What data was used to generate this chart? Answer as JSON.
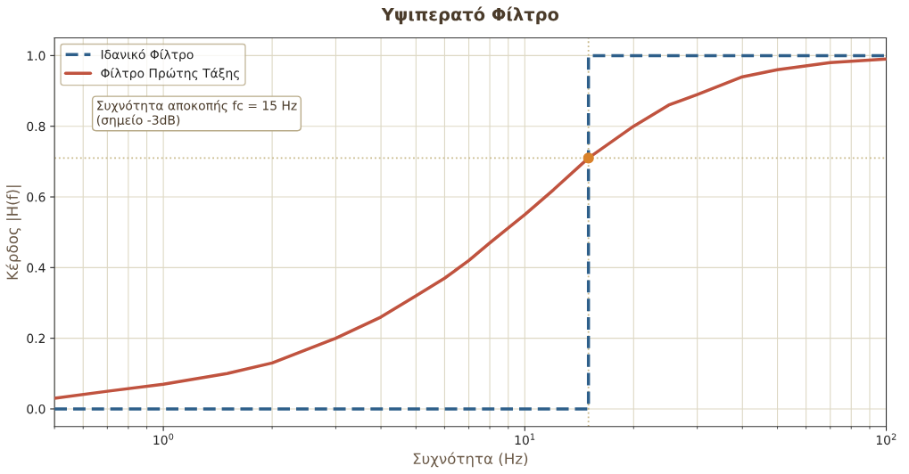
{
  "chart_data": {
    "type": "line",
    "title": "Υψιπερατό Φίλτρο",
    "xlabel": "Συχνότητα (Hz)",
    "ylabel": "Κέρδος |H(f)|",
    "log": "x",
    "grid": true,
    "legend": "top left",
    "xlim": [
      0.5,
      100
    ],
    "xticks": [
      {
        "value": 1,
        "label": "10$^{0}$"
      },
      {
        "value": 10,
        "label": "10$^{1}$"
      },
      {
        "value": 100,
        "label": "10$^{2}$"
      }
    ],
    "ylim": [
      -0.05,
      1.05
    ],
    "yticks": [
      {
        "value": 0,
        "label": "0.0"
      },
      0.2,
      0.4,
      0.6,
      0.8,
      {
        "value": 1,
        "label": "1.0"
      }
    ],
    "series": [
      {
        "name": "Ιδανικό Φίλτρο",
        "line_style": "dashed",
        "color": "#2e5f8a",
        "x": [
          0.5,
          15,
          15,
          100
        ],
        "values": [
          0,
          0,
          1,
          1
        ]
      },
      {
        "name": "Φίλτρο Πρώτης Τάξης",
        "line_style": "solid",
        "color": "#c0533f",
        "x": [
          0.5,
          0.7,
          1,
          1.5,
          2,
          3,
          4,
          5,
          6,
          7,
          8,
          10,
          12,
          15,
          20,
          25,
          30,
          40,
          50,
          70,
          100
        ],
        "values": [
          0.03,
          0.05,
          0.07,
          0.1,
          0.13,
          0.2,
          0.26,
          0.32,
          0.37,
          0.42,
          0.47,
          0.55,
          0.62,
          0.71,
          0.8,
          0.86,
          0.89,
          0.94,
          0.96,
          0.98,
          0.99
        ]
      },
      {
        "type": "scatter",
        "marker": "circle",
        "color": "#d9822b",
        "x": [
          15
        ],
        "values": [
          0.71
        ]
      }
    ],
    "ref_lines": [
      {
        "axis": "x",
        "value": 15,
        "color": "#c8b98a",
        "line_style": "dotted"
      },
      {
        "axis": "y",
        "value": 0.71,
        "color": "#c8b98a",
        "line_style": "dotted"
      }
    ],
    "annotations": [
      "Συχνότητα αποκοπής fc = 15 Hz\n(σημείο -3dB)"
    ]
  }
}
